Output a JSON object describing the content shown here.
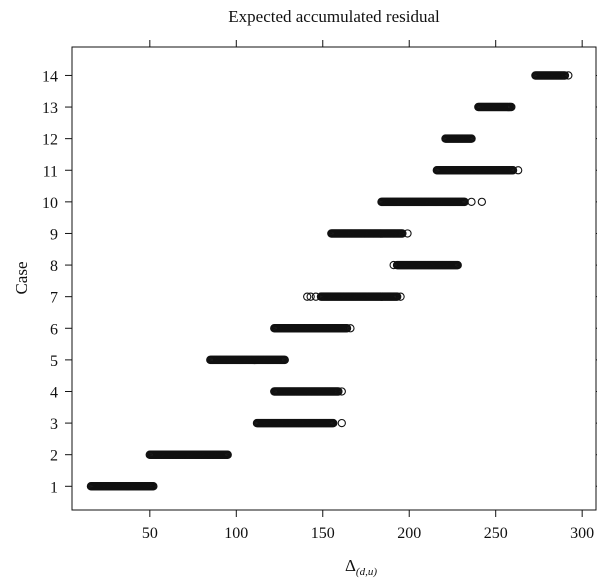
{
  "chart_data": {
    "type": "scatter",
    "title": "Expected accumulated residual",
    "xlabel_main": "Δ",
    "xlabel_sub": "(d,u)",
    "ylabel": "Case",
    "xlim": [
      5,
      308
    ],
    "ylim": [
      0.25,
      14.9
    ],
    "x_ticks": [
      50,
      100,
      150,
      200,
      250,
      300
    ],
    "y_ticks": [
      1,
      2,
      3,
      4,
      5,
      6,
      7,
      8,
      9,
      10,
      11,
      12,
      13,
      14
    ],
    "grid": false,
    "legend": "none",
    "marker": "open circle",
    "series": [
      {
        "case": 1,
        "x_min": 16,
        "x_max": 52,
        "outliers": []
      },
      {
        "case": 2,
        "x_min": 50,
        "x_max": 95,
        "outliers": []
      },
      {
        "case": 3,
        "x_min": 112,
        "x_max": 156,
        "outliers": [
          161
        ]
      },
      {
        "case": 4,
        "x_min": 122,
        "x_max": 159,
        "outliers": [
          161
        ]
      },
      {
        "case": 5,
        "x_min": 85,
        "x_max": 128,
        "outliers": []
      },
      {
        "case": 6,
        "x_min": 122,
        "x_max": 164,
        "outliers": [
          166
        ]
      },
      {
        "case": 7,
        "x_min": 149,
        "x_max": 193,
        "outliers": [
          141,
          143,
          146,
          195
        ]
      },
      {
        "case": 8,
        "x_min": 193,
        "x_max": 228,
        "outliers": [
          191
        ]
      },
      {
        "case": 9,
        "x_min": 155,
        "x_max": 196,
        "outliers": [
          199
        ]
      },
      {
        "case": 10,
        "x_min": 184,
        "x_max": 232,
        "outliers": [
          236,
          242
        ]
      },
      {
        "case": 11,
        "x_min": 216,
        "x_max": 260,
        "outliers": [
          263
        ]
      },
      {
        "case": 12,
        "x_min": 221,
        "x_max": 236,
        "outliers": []
      },
      {
        "case": 13,
        "x_min": 240,
        "x_max": 259,
        "outliers": []
      },
      {
        "case": 14,
        "x_min": 273,
        "x_max": 290,
        "outliers": [
          292
        ]
      }
    ]
  }
}
